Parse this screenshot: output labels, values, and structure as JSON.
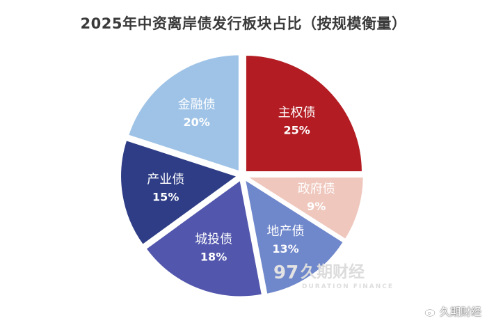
{
  "chart_data": {
    "type": "pie",
    "title": "2025年中资离岸债发行板块占比（按规模衡量）",
    "slices": [
      {
        "name": "主权债",
        "value": 25,
        "label": "25%",
        "color": "#b31c22",
        "text_color": "#ffffff"
      },
      {
        "name": "政府债",
        "value": 9,
        "label": "9%",
        "color": "#efc7bd",
        "text_color": "#ffffff"
      },
      {
        "name": "地产债",
        "value": 13,
        "label": "13%",
        "color": "#6f87cb",
        "text_color": "#ffffff"
      },
      {
        "name": "城投债",
        "value": 18,
        "label": "18%",
        "color": "#5257ad",
        "text_color": "#ffffff"
      },
      {
        "name": "产业债",
        "value": 15,
        "label": "15%",
        "color": "#2e3d86",
        "text_color": "#ffffff"
      },
      {
        "name": "金融债",
        "value": 20,
        "label": "20%",
        "color": "#9fc3e7",
        "text_color": "#ffffff"
      }
    ]
  },
  "watermark": {
    "cn": "久期财经",
    "en": "DURATION FINANCE",
    "logo_text": "97"
  },
  "weibo_tag": {
    "text": "久期财经",
    "icon": "weibo-icon"
  }
}
